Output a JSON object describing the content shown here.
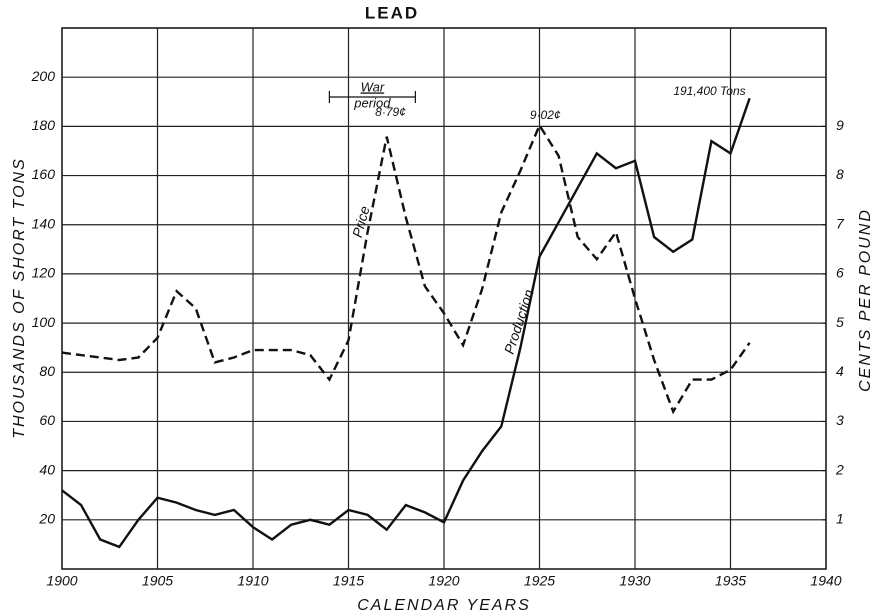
{
  "chart_data": {
    "type": "line",
    "title": "LEAD",
    "x_label": "CALENDAR YEARS",
    "y_label": "THOUSANDS OF SHORT TONS",
    "y2_label": "CENTS PER POUND",
    "x": [
      1900,
      1901,
      1902,
      1903,
      1904,
      1905,
      1906,
      1907,
      1908,
      1909,
      1910,
      1911,
      1912,
      1913,
      1914,
      1915,
      1916,
      1917,
      1918,
      1919,
      1920,
      1921,
      1922,
      1923,
      1924,
      1925,
      1926,
      1927,
      1928,
      1929,
      1930,
      1931,
      1932,
      1933,
      1934,
      1935,
      1936
    ],
    "series": [
      {
        "name": "Production",
        "color": "#111111",
        "style": "solid",
        "values": [
          32,
          26,
          12,
          9,
          20,
          29,
          27,
          24,
          22,
          24,
          17,
          12,
          18,
          20,
          18,
          24,
          22,
          16,
          26,
          23,
          19,
          36,
          48,
          58,
          90,
          127,
          141,
          155,
          169,
          163,
          166,
          135,
          129,
          134,
          174,
          169,
          191.4
        ]
      },
      {
        "name": "Price",
        "color": "#111111",
        "style": "dashed",
        "axis": "y2",
        "values": [
          4.4,
          4.35,
          4.3,
          4.25,
          4.3,
          4.7,
          5.65,
          5.3,
          4.2,
          4.3,
          4.45,
          4.45,
          4.45,
          4.35,
          3.85,
          4.65,
          6.85,
          8.79,
          7.15,
          5.75,
          5.2,
          4.55,
          5.7,
          7.25,
          8.1,
          9.02,
          8.4,
          6.75,
          6.3,
          6.85,
          5.5,
          4.25,
          3.2,
          3.85,
          3.85,
          4.05,
          4.6
        ]
      }
    ],
    "annotations": [
      "War",
      "period",
      "8·79¢",
      "9·02¢",
      "191,400 Tons"
    ],
    "xlim": [
      1900,
      1940
    ],
    "xticks": [
      1900,
      1905,
      1910,
      1915,
      1920,
      1925,
      1930,
      1935,
      1940
    ],
    "ylim": [
      0,
      220
    ],
    "yticks": [
      20,
      40,
      60,
      80,
      100,
      120,
      140,
      160,
      180,
      200,
      220
    ],
    "y2lim": [
      0,
      11
    ],
    "y2ticks": [
      1,
      2,
      3,
      4,
      5,
      6,
      7,
      8,
      9
    ],
    "grid": true
  }
}
